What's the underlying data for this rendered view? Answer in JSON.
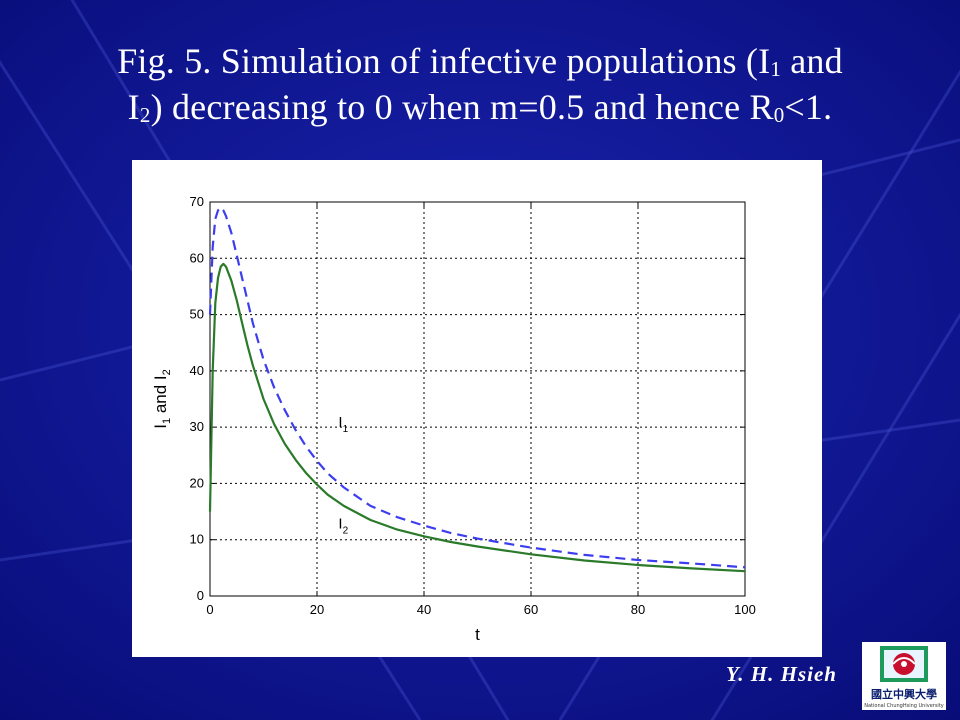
{
  "slide": {
    "title_line1_part1": "Fig. 5. Simulation of infective populations (I",
    "title_sub1": "1",
    "title_line1_part2": " and",
    "title_line2_part1": "I",
    "title_sub2": "2",
    "title_line2_part2": ") decreasing to 0 when m=0.5 and hence  R",
    "title_sub3": "0",
    "title_line2_part3": "<1.",
    "author": "Y. H. Hsieh",
    "logo_icon": "national-chunghsing-university-logo",
    "logo_text": "國立中興大學",
    "logo_caption": "National ChungHsing University"
  },
  "colors": {
    "background": "#0a0f8a",
    "series_I1": "#3d3df0",
    "series_I2": "#2a7a2a"
  },
  "chart_data": {
    "type": "line",
    "xlabel": "t",
    "ylabel_parts": [
      "I",
      "1",
      " and I",
      "2"
    ],
    "xlim": [
      0,
      100
    ],
    "ylim": [
      0,
      70
    ],
    "xticks": [
      0,
      20,
      40,
      60,
      80,
      100
    ],
    "yticks": [
      0,
      10,
      20,
      30,
      40,
      50,
      60,
      70
    ],
    "grid": true,
    "series": [
      {
        "name": "I1",
        "label_main": "I",
        "label_sub": "1",
        "style": "dashed",
        "x": [
          0,
          0.5,
          1,
          1.5,
          2,
          2.5,
          3,
          4,
          5,
          6,
          7,
          8,
          10,
          12,
          14,
          16,
          18,
          20,
          22,
          25,
          30,
          35,
          40,
          45,
          50,
          60,
          70,
          80,
          90,
          100
        ],
        "y": [
          50,
          62,
          67,
          68.5,
          69,
          68.5,
          67.5,
          64.5,
          60.5,
          56.5,
          52.5,
          48.5,
          42,
          37,
          33,
          29.5,
          26.5,
          24,
          21.8,
          19.3,
          16,
          14,
          12.5,
          11.2,
          10.2,
          8.6,
          7.3,
          6.4,
          5.8,
          5.1
        ]
      },
      {
        "name": "I2",
        "label_main": "I",
        "label_sub": "2",
        "style": "solid",
        "x": [
          0,
          0.5,
          1,
          1.5,
          2,
          2.5,
          3,
          4,
          5,
          6,
          7,
          8,
          10,
          12,
          14,
          16,
          18,
          20,
          22,
          25,
          30,
          35,
          40,
          45,
          50,
          60,
          70,
          80,
          90,
          100
        ],
        "y": [
          15,
          40,
          52,
          56.5,
          58.5,
          59,
          58.5,
          56,
          52.5,
          48.5,
          44.5,
          41,
          35,
          30.5,
          27,
          24.2,
          21.8,
          19.8,
          18,
          16,
          13.5,
          11.8,
          10.6,
          9.6,
          8.8,
          7.4,
          6.3,
          5.5,
          4.9,
          4.4
        ]
      }
    ]
  }
}
